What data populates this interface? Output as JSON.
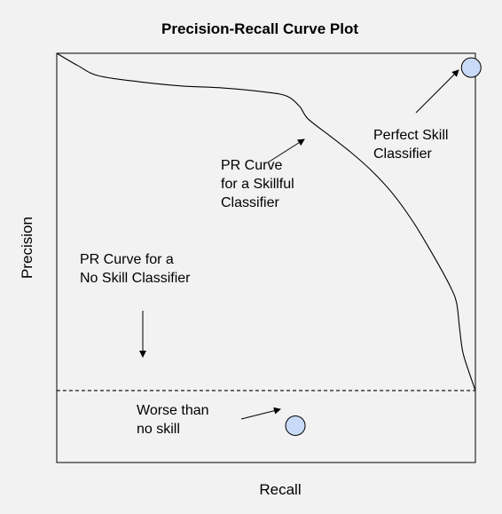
{
  "chart_data": {
    "type": "line",
    "title": "Precision-Recall Curve Plot",
    "xlabel": "Recall",
    "ylabel": "Precision",
    "xlim": [
      0,
      1
    ],
    "ylim": [
      0,
      1
    ],
    "grid": false,
    "series": [
      {
        "style": "solid",
        "x": [
          0.0,
          0.05,
          0.1,
          0.2,
          0.3,
          0.4,
          0.5,
          0.55,
          0.58,
          0.6,
          0.65,
          0.7,
          0.75,
          0.8,
          0.85,
          0.9,
          0.94,
          0.955,
          0.962,
          0.97,
          0.985,
          1.0
        ],
        "y": [
          1.0,
          0.97,
          0.945,
          0.93,
          0.92,
          0.915,
          0.905,
          0.895,
          0.87,
          0.84,
          0.8,
          0.76,
          0.715,
          0.66,
          0.59,
          0.505,
          0.43,
          0.39,
          0.33,
          0.27,
          0.22,
          0.176
        ]
      },
      {
        "style": "dashed",
        "x": [
          0,
          1
        ],
        "y": [
          0.176,
          0.176
        ]
      }
    ],
    "points": [
      {
        "x": 0.99,
        "y": 0.965
      },
      {
        "x": 0.57,
        "y": 0.09
      }
    ],
    "annotations": [
      {
        "lines": [
          "Perfect Skill",
          "Classifier"
        ]
      },
      {
        "lines": [
          "PR Curve",
          "for a Skillful",
          "Classifier"
        ]
      },
      {
        "lines": [
          "PR Curve for a",
          "No Skill Classifier"
        ]
      },
      {
        "lines": [
          "Worse than",
          "no skill"
        ]
      }
    ],
    "colors": {
      "background": "#f2f2f2",
      "line": "#000000",
      "marker_fill": "#c9daf8",
      "marker_stroke": "#000000"
    }
  }
}
